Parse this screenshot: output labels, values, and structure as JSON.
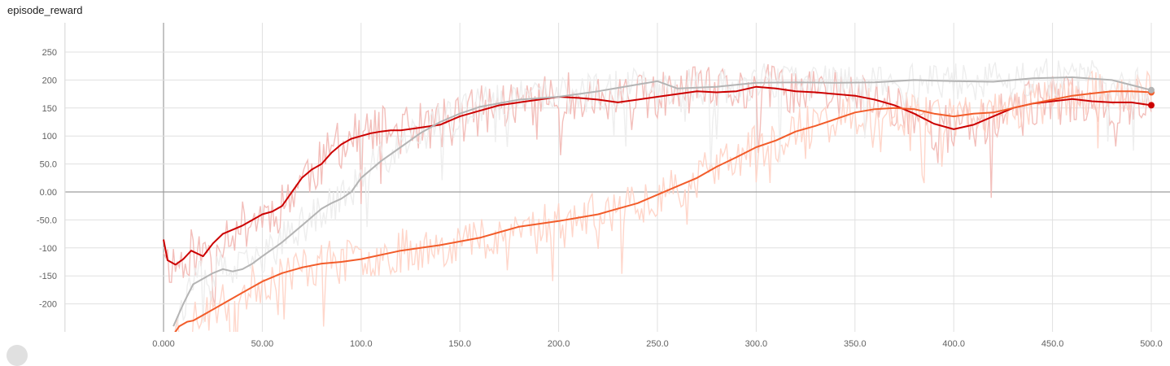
{
  "chart_title": "episode_reward",
  "colors": {
    "run_darkred": "#cc0000",
    "run_orange": "#f25c2a",
    "run_gray": "#b4b4b4",
    "raw_darkred": "#f2b8b4",
    "raw_orange": "#ffd2c4",
    "raw_gray": "#ececec"
  },
  "chart_data": {
    "type": "line",
    "title": "episode_reward",
    "xlabel": "",
    "ylabel": "",
    "xlim": [
      -50,
      510
    ],
    "ylim": [
      -252,
      302
    ],
    "x_ticks": [
      "0.000",
      "50.00",
      "100.0",
      "150.0",
      "200.0",
      "250.0",
      "300.0",
      "350.0",
      "400.0",
      "450.0",
      "500.0"
    ],
    "y_ticks": [
      "250",
      "200",
      "150",
      "100",
      "50.0",
      "0.00",
      "-50.0",
      "-100",
      "-150",
      "-200"
    ],
    "grid": true,
    "legend": "none",
    "series": [
      {
        "color_key": "run_darkred",
        "raw_color_key": "raw_darkred",
        "raw_noise": 45,
        "seed": 11,
        "x": [
          0,
          2,
          6,
          10,
          14,
          20,
          25,
          30,
          40,
          45,
          50,
          55,
          60,
          65,
          70,
          75,
          80,
          85,
          90,
          95,
          100,
          105,
          110,
          115,
          120,
          130,
          140,
          150,
          160,
          170,
          180,
          190,
          200,
          210,
          220,
          230,
          240,
          250,
          260,
          270,
          280,
          290,
          300,
          310,
          320,
          330,
          340,
          350,
          360,
          370,
          380,
          390,
          400,
          410,
          420,
          430,
          440,
          450,
          460,
          470,
          480,
          490,
          500
        ],
        "y": [
          -85,
          -122,
          -130,
          -120,
          -105,
          -115,
          -92,
          -75,
          -60,
          -50,
          -40,
          -35,
          -25,
          0,
          25,
          40,
          50,
          70,
          85,
          95,
          100,
          105,
          108,
          110,
          110,
          115,
          120,
          135,
          145,
          155,
          160,
          165,
          170,
          168,
          165,
          160,
          165,
          170,
          175,
          180,
          178,
          180,
          188,
          185,
          180,
          178,
          175,
          172,
          165,
          155,
          140,
          122,
          112,
          120,
          135,
          150,
          158,
          162,
          166,
          162,
          160,
          160,
          155
        ]
      },
      {
        "color_key": "run_orange",
        "raw_color_key": "raw_orange",
        "raw_noise": 40,
        "seed": 23,
        "x": [
          5,
          8,
          12,
          15,
          20,
          30,
          40,
          50,
          60,
          70,
          80,
          90,
          100,
          120,
          140,
          160,
          170,
          180,
          200,
          220,
          230,
          240,
          250,
          260,
          270,
          280,
          290,
          300,
          310,
          320,
          330,
          340,
          350,
          360,
          370,
          380,
          390,
          400,
          410,
          420,
          430,
          440,
          450,
          460,
          470,
          480,
          490,
          500
        ],
        "y": [
          -255,
          -240,
          -232,
          -230,
          -220,
          -200,
          -180,
          -160,
          -145,
          -135,
          -128,
          -125,
          -120,
          -105,
          -95,
          -82,
          -72,
          -62,
          -52,
          -40,
          -30,
          -20,
          -5,
          10,
          25,
          45,
          62,
          80,
          92,
          108,
          118,
          130,
          142,
          148,
          150,
          148,
          140,
          135,
          140,
          142,
          150,
          158,
          165,
          172,
          176,
          180,
          180,
          178
        ]
      },
      {
        "color_key": "run_gray",
        "raw_color_key": "raw_gray",
        "raw_noise": 35,
        "seed": 37,
        "x": [
          5,
          10,
          15,
          20,
          25,
          30,
          35,
          40,
          45,
          50,
          60,
          70,
          80,
          85,
          90,
          95,
          100,
          110,
          120,
          130,
          140,
          150,
          160,
          180,
          200,
          220,
          240,
          250,
          260,
          280,
          300,
          320,
          340,
          360,
          380,
          400,
          420,
          440,
          460,
          480,
          500
        ],
        "y": [
          -240,
          -200,
          -165,
          -155,
          -145,
          -138,
          -142,
          -138,
          -128,
          -115,
          -90,
          -60,
          -30,
          -20,
          -12,
          0,
          25,
          55,
          80,
          105,
          125,
          140,
          152,
          165,
          170,
          180,
          192,
          198,
          185,
          188,
          195,
          196,
          195,
          196,
          200,
          198,
          197,
          203,
          205,
          200,
          182
        ]
      }
    ]
  }
}
